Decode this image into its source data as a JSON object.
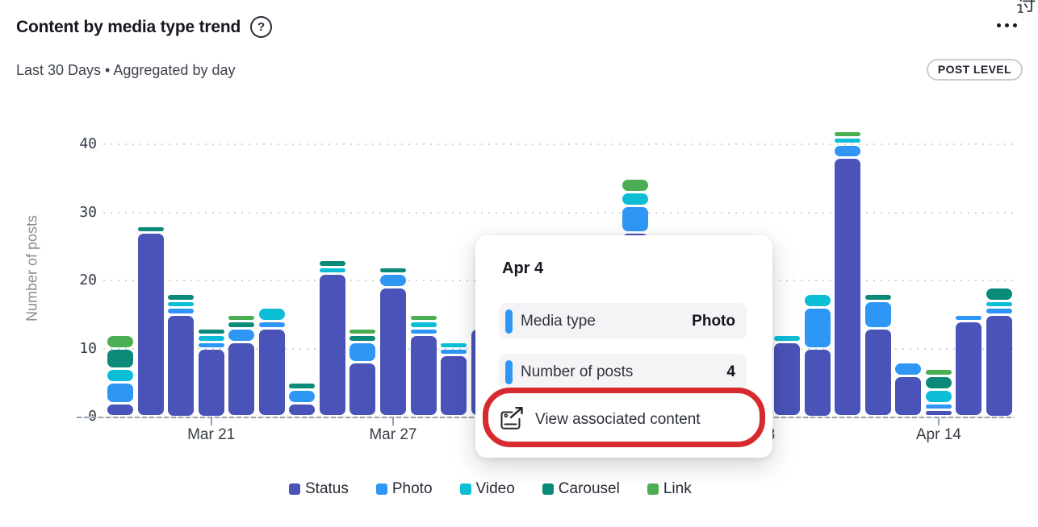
{
  "header": {
    "title": "Content by media type trend",
    "subtitle": "Last 30 Days • Aggregated by day",
    "badge": "POST LEVEL",
    "help_icon": "?",
    "corner_glyph": "过"
  },
  "chart_data": {
    "type": "bar",
    "stacked": true,
    "title": "Content by media type trend",
    "xlabel": "",
    "ylabel": "Number of posts",
    "ylim": [
      0,
      44
    ],
    "y_ticks": [
      0,
      10,
      20,
      30,
      40
    ],
    "grid": "dotted-horizontal",
    "legend_position": "bottom",
    "series_names": [
      "Status",
      "Photo",
      "Video",
      "Carousel",
      "Link"
    ],
    "series_colors": [
      "#4953b8",
      "#2e97f5",
      "#0cbdd6",
      "#0c8a79",
      "#4cae52"
    ],
    "x_tick_labels": [
      "Mar 21",
      "Mar 27",
      "Apr 8",
      "Apr 14"
    ],
    "bars": [
      {
        "date": "Mar 18",
        "values": [
          2,
          3,
          2,
          3,
          2
        ]
      },
      {
        "date": "Mar 19",
        "values": [
          27,
          0,
          0,
          1,
          0
        ]
      },
      {
        "date": "Mar 20",
        "values": [
          15,
          1,
          1,
          1,
          0
        ]
      },
      {
        "date": "Mar 21",
        "values": [
          10,
          1,
          1,
          1,
          0
        ]
      },
      {
        "date": "Mar 22",
        "values": [
          11,
          2,
          0,
          1,
          1
        ]
      },
      {
        "date": "Mar 23",
        "values": [
          13,
          1,
          2,
          0,
          0
        ]
      },
      {
        "date": "Mar 24",
        "values": [
          2,
          2,
          0,
          1,
          0
        ]
      },
      {
        "date": "Mar 25",
        "values": [
          21,
          0,
          1,
          1,
          0
        ]
      },
      {
        "date": "Mar 26",
        "values": [
          8,
          3,
          0,
          1,
          1
        ]
      },
      {
        "date": "Mar 27",
        "values": [
          19,
          2,
          0,
          1,
          0
        ]
      },
      {
        "date": "Mar 28",
        "values": [
          12,
          1,
          1,
          0,
          1
        ]
      },
      {
        "date": "Mar 29",
        "values": [
          9,
          1,
          1,
          0,
          0
        ]
      },
      {
        "date": "Mar 30",
        "values": [
          13,
          0,
          0,
          0,
          0
        ]
      },
      {
        "date": "Mar 31",
        "values": null,
        "hidden": true
      },
      {
        "date": "Apr 1",
        "values": null,
        "hidden": true
      },
      {
        "date": "Apr 2",
        "values": null,
        "hidden": true
      },
      {
        "date": "Apr 3",
        "values": null,
        "hidden": true
      },
      {
        "date": "Apr 4",
        "values": [
          27,
          4,
          2,
          0,
          2
        ]
      },
      {
        "date": "Apr 5",
        "values": null,
        "hidden": true
      },
      {
        "date": "Apr 6",
        "values": null,
        "hidden": true
      },
      {
        "date": "Apr 7",
        "values": null,
        "hidden": true
      },
      {
        "date": "Apr 8",
        "values": null,
        "hidden": true
      },
      {
        "date": "Apr 9",
        "values": [
          11,
          0,
          1,
          0,
          0
        ]
      },
      {
        "date": "Apr 10",
        "values": [
          10,
          6,
          2,
          0,
          0
        ]
      },
      {
        "date": "Apr 11",
        "values": [
          38,
          2,
          1,
          0,
          1
        ]
      },
      {
        "date": "Apr 12",
        "values": [
          13,
          4,
          0,
          1,
          0
        ]
      },
      {
        "date": "Apr 13",
        "values": [
          6,
          2,
          0,
          0,
          0
        ]
      },
      {
        "date": "Apr 14",
        "values": [
          1,
          1,
          2,
          2,
          1
        ]
      },
      {
        "date": "Apr 15",
        "values": [
          14,
          1,
          0,
          0,
          0
        ]
      },
      {
        "date": "Apr 16",
        "values": [
          15,
          1,
          1,
          2,
          0
        ]
      }
    ]
  },
  "tooltip": {
    "date": "Apr 4",
    "rows": [
      {
        "label": "Media type",
        "value": "Photo"
      },
      {
        "label": "Number of posts",
        "value": "4"
      }
    ],
    "action_label": "View associated content",
    "marker_color": "#2e97f5"
  },
  "annotation": {
    "shape": "red-rounded-rect",
    "color": "#d62a2e"
  },
  "legend": {
    "items": [
      {
        "label": "Status",
        "color": "#4953b8"
      },
      {
        "label": "Photo",
        "color": "#2e97f5"
      },
      {
        "label": "Video",
        "color": "#0cbdd6"
      },
      {
        "label": "Carousel",
        "color": "#0c8a79"
      },
      {
        "label": "Link",
        "color": "#4cae52"
      }
    ]
  }
}
